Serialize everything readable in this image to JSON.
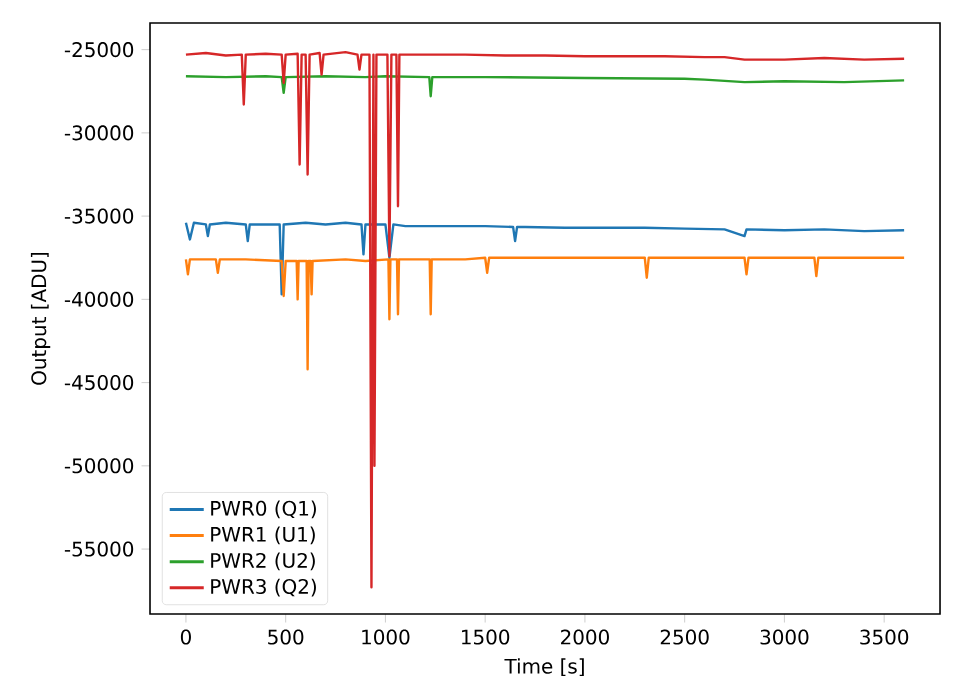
{
  "chart_data": {
    "type": "line",
    "xlabel": "Time [s]",
    "ylabel": "Output [ADU]",
    "xlim": [
      -180,
      3780
    ],
    "ylim": [
      -58900,
      -23400
    ],
    "xticks": [
      0,
      500,
      1000,
      1500,
      2000,
      2500,
      3000,
      3500
    ],
    "yticks": [
      -55000,
      -50000,
      -45000,
      -40000,
      -35000,
      -30000,
      -25000
    ],
    "legend": "bottom left",
    "grid": false,
    "marker": "none",
    "line_style": "solid",
    "series": [
      {
        "name": "PWR0 (Q1)",
        "color": "#1f77b4",
        "x": [
          0,
          20,
          40,
          100,
          110,
          120,
          200,
          300,
          310,
          320,
          470,
          480,
          490,
          600,
          700,
          800,
          880,
          890,
          900,
          1000,
          1020,
          1040,
          1100,
          1300,
          1500,
          1640,
          1650,
          1660,
          1700,
          1900,
          2100,
          2300,
          2500,
          2700,
          2800,
          2810,
          3000,
          3200,
          3400,
          3600
        ],
        "values": [
          -35400,
          -36400,
          -35400,
          -35500,
          -36200,
          -35500,
          -35400,
          -35500,
          -36500,
          -35500,
          -35500,
          -39700,
          -35500,
          -35400,
          -35500,
          -35400,
          -35500,
          -37300,
          -35500,
          -35500,
          -37500,
          -35500,
          -35600,
          -35600,
          -35600,
          -35650,
          -36500,
          -35650,
          -35650,
          -35700,
          -35700,
          -35700,
          -35750,
          -35800,
          -36200,
          -35800,
          -35850,
          -35800,
          -35900,
          -35850
        ]
      },
      {
        "name": "PWR1 (U1)",
        "color": "#ff7f0e",
        "x": [
          0,
          10,
          20,
          150,
          160,
          170,
          300,
          480,
          490,
          500,
          555,
          560,
          565,
          605,
          610,
          615,
          625,
          630,
          635,
          800,
          900,
          1015,
          1020,
          1025,
          1058,
          1063,
          1068,
          1222,
          1227,
          1232,
          1400,
          1500,
          1510,
          1520,
          1800,
          2000,
          2200,
          2300,
          2310,
          2320,
          2600,
          2800,
          2810,
          2820,
          3000,
          3150,
          3160,
          3170,
          3300,
          3600
        ],
        "values": [
          -37600,
          -38500,
          -37600,
          -37600,
          -38400,
          -37600,
          -37600,
          -37700,
          -39800,
          -37700,
          -37700,
          -40000,
          -37700,
          -37700,
          -44200,
          -37700,
          -37700,
          -39700,
          -37700,
          -37600,
          -37700,
          -37600,
          -41200,
          -37600,
          -37600,
          -40900,
          -37600,
          -37600,
          -40900,
          -37600,
          -37600,
          -37500,
          -38400,
          -37500,
          -37500,
          -37500,
          -37500,
          -37500,
          -38700,
          -37500,
          -37500,
          -37500,
          -38500,
          -37500,
          -37500,
          -37500,
          -38600,
          -37500,
          -37500,
          -37500
        ]
      },
      {
        "name": "PWR2 (U2)",
        "color": "#2ca02c",
        "x": [
          0,
          200,
          400,
          480,
          490,
          500,
          700,
          900,
          1000,
          1220,
          1227,
          1235,
          1500,
          2000,
          2500,
          2600,
          2800,
          3000,
          3300,
          3600
        ],
        "values": [
          -26600,
          -26650,
          -26600,
          -26650,
          -27600,
          -26650,
          -26600,
          -26650,
          -26600,
          -26650,
          -27800,
          -26650,
          -26650,
          -26700,
          -26750,
          -26800,
          -26950,
          -26900,
          -26950,
          -26850
        ]
      },
      {
        "name": "PWR3 (Q2)",
        "color": "#d62728",
        "x": [
          0,
          100,
          200,
          280,
          290,
          300,
          400,
          480,
          490,
          500,
          560,
          570,
          580,
          600,
          610,
          620,
          670,
          680,
          690,
          800,
          860,
          870,
          880,
          920,
          930,
          940,
          945,
          955,
          1010,
          1020,
          1030,
          1055,
          1063,
          1070,
          1200,
          1400,
          1600,
          1800,
          2000,
          2200,
          2400,
          2600,
          2700,
          2800,
          3000,
          3200,
          3400,
          3600
        ],
        "values": [
          -25300,
          -25200,
          -25350,
          -25300,
          -28300,
          -25300,
          -25250,
          -25300,
          -27000,
          -25300,
          -25250,
          -31900,
          -25300,
          -25300,
          -32500,
          -25300,
          -25200,
          -26500,
          -25300,
          -25150,
          -25300,
          -26200,
          -25300,
          -25300,
          -57300,
          -25300,
          -50000,
          -25300,
          -25300,
          -37400,
          -25300,
          -25300,
          -34400,
          -25300,
          -25300,
          -25300,
          -25350,
          -25350,
          -25400,
          -25400,
          -25400,
          -25450,
          -25450,
          -25600,
          -25600,
          -25500,
          -25600,
          -25550
        ]
      }
    ]
  }
}
